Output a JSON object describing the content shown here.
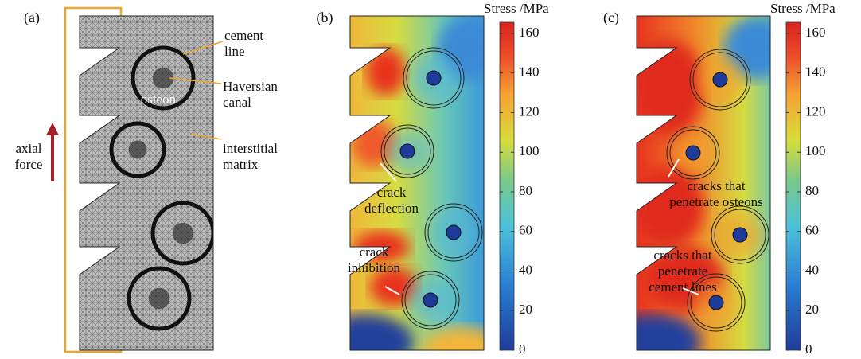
{
  "panels": [
    {
      "label": "(a)",
      "annotations": [
        {
          "lines": [
            "cement",
            "line"
          ]
        },
        {
          "lines": [
            "Haversian",
            "canal"
          ]
        },
        {
          "lines": [
            "osteon"
          ]
        },
        {
          "lines": [
            "interstitial",
            "matrix"
          ]
        },
        {
          "lines": [
            "axial",
            "force"
          ]
        }
      ]
    },
    {
      "label": "(b)",
      "annotations": [
        {
          "lines": [
            "crack",
            "deflection"
          ]
        },
        {
          "lines": [
            "crack",
            "inhibition"
          ]
        }
      ],
      "colorbar": {
        "title": "Stress /MPa",
        "ticks": [
          0,
          20,
          40,
          60,
          80,
          100,
          120,
          140,
          160
        ]
      }
    },
    {
      "label": "(c)",
      "annotations": [
        {
          "lines": [
            "cracks that",
            "penetrate osteons"
          ]
        },
        {
          "lines": [
            "cracks that",
            "penetrate",
            "cement lines"
          ]
        }
      ],
      "colorbar": {
        "title": "Stress /MPa",
        "ticks": [
          0,
          20,
          40,
          60,
          80,
          100,
          120,
          140,
          160
        ]
      }
    }
  ]
}
